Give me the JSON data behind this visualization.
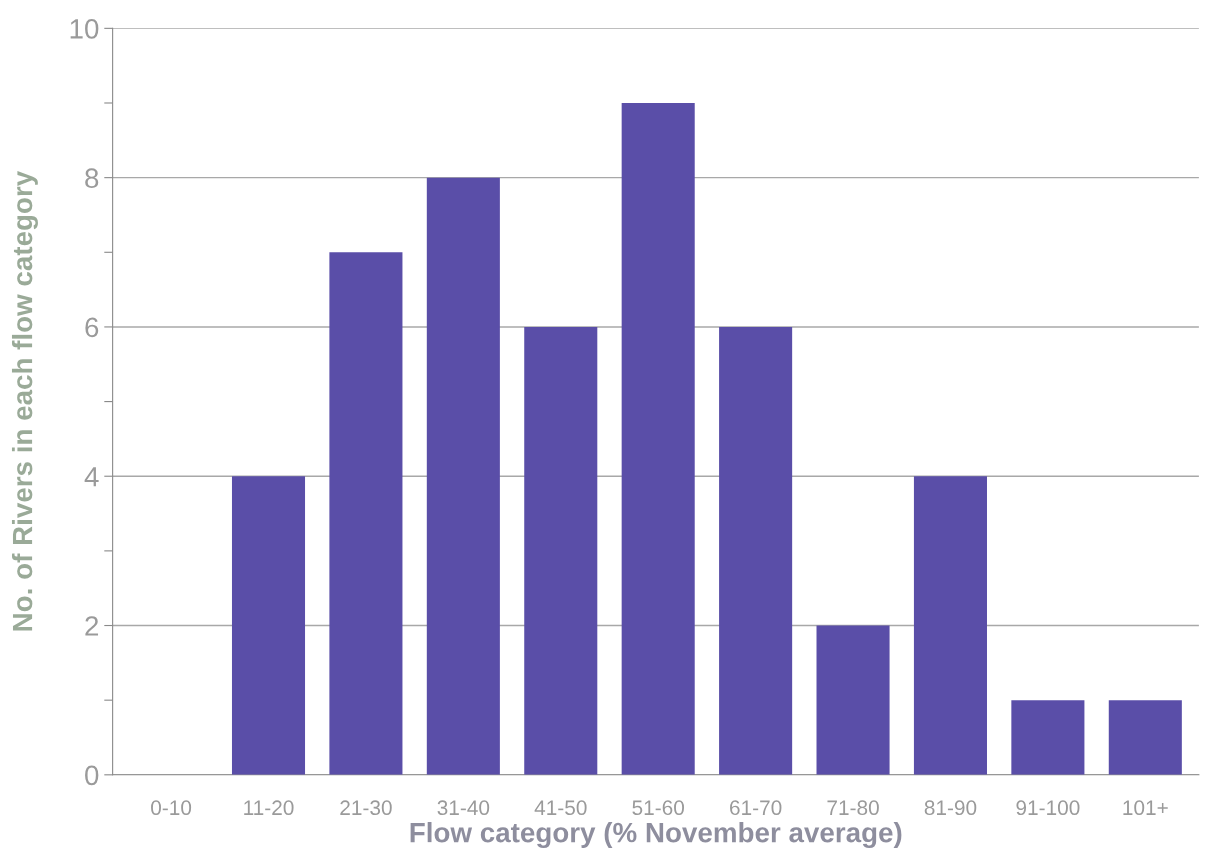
{
  "chart_data": {
    "type": "bar",
    "xlabel": "Flow category (% November average)",
    "ylabel": "No. of Rivers in each flow category",
    "categories": [
      "0-10",
      "11-20",
      "21-30",
      "31-40",
      "41-50",
      "51-60",
      "61-70",
      "71-80",
      "81-90",
      "91-100",
      "101+"
    ],
    "values": [
      0,
      4,
      7,
      8,
      6,
      9,
      6,
      2,
      4,
      1,
      1
    ],
    "color": "#5a4ea8",
    "ylim": [
      0,
      10
    ],
    "yticks": [
      0,
      {
        "value": 1,
        "label": null
      },
      2,
      {
        "value": 3,
        "label": null
      },
      4,
      {
        "value": 5,
        "label": null
      },
      6,
      {
        "value": 7,
        "label": null
      },
      8,
      {
        "value": 9,
        "label": null
      },
      10
    ],
    "grid": "y",
    "legend": false
  }
}
